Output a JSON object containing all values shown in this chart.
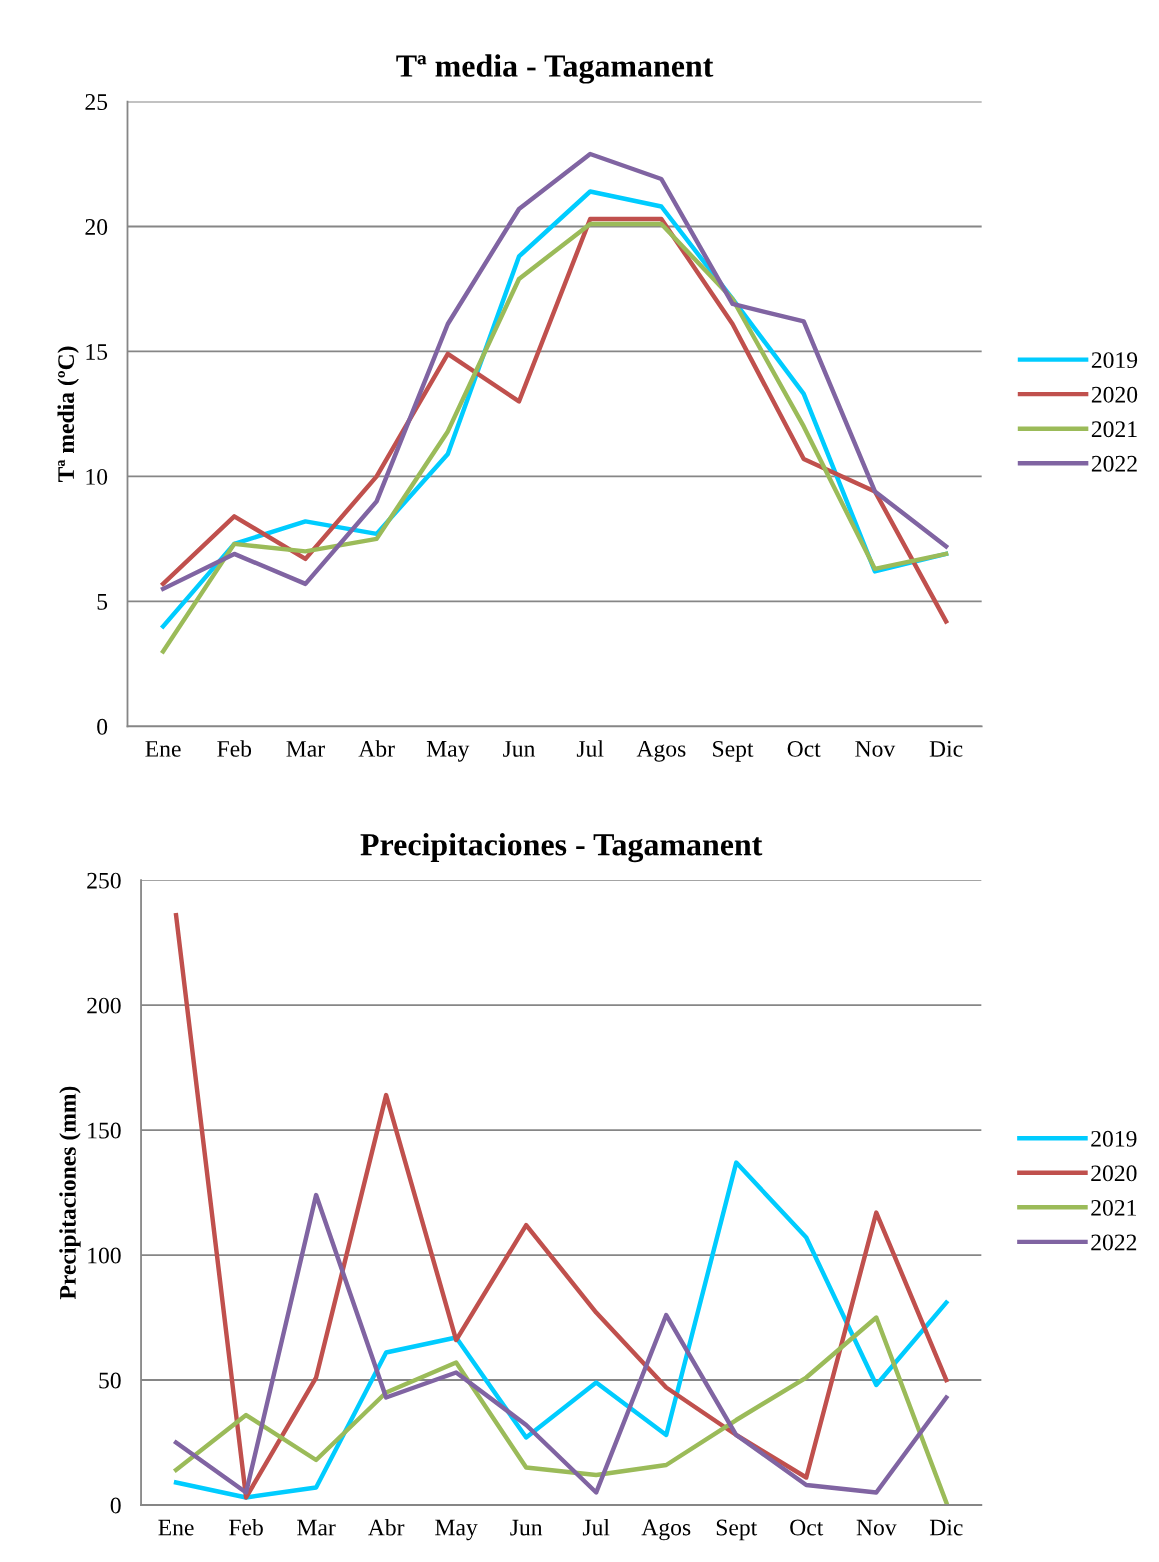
{
  "chart_data": [
    {
      "type": "line",
      "title": "Tª media - Tagamanent",
      "ylabel": "Tª media (ºC)",
      "categories": [
        "Ene",
        "Feb",
        "Mar",
        "Abr",
        "May",
        "Jun",
        "Jul",
        "Agos",
        "Sept",
        "Oct",
        "Nov",
        "Dic"
      ],
      "ylim": [
        0,
        25
      ],
      "yticks": [
        0,
        5,
        10,
        15,
        20,
        25
      ],
      "grid": "y",
      "legend": "right",
      "marker": "none",
      "line_style": "solid",
      "series": [
        {
          "name": "2019",
          "color": "#00ccff",
          "values": [
            4.0,
            7.3,
            8.2,
            7.7,
            10.9,
            18.8,
            21.4,
            20.8,
            17.1,
            13.3,
            6.2,
            6.9
          ]
        },
        {
          "name": "2020",
          "color": "#c0504d",
          "values": [
            5.7,
            8.4,
            6.7,
            10.0,
            14.9,
            13.0,
            20.3,
            20.3,
            16.1,
            10.7,
            9.4,
            4.2
          ]
        },
        {
          "name": "2021",
          "color": "#9bbb59",
          "values": [
            3.0,
            7.3,
            7.0,
            7.5,
            11.8,
            17.9,
            20.1,
            20.1,
            17.1,
            12.0,
            6.3,
            6.9
          ]
        },
        {
          "name": "2022",
          "color": "#8064a2",
          "values": [
            5.5,
            6.9,
            5.7,
            9.0,
            16.1,
            20.7,
            22.9,
            21.9,
            16.9,
            16.2,
            9.4,
            7.2
          ]
        }
      ]
    },
    {
      "type": "line",
      "title": "Precipitaciones - Tagamanent",
      "ylabel": "Precipitaciones (mm)",
      "categories": [
        "Ene",
        "Feb",
        "Mar",
        "Abr",
        "May",
        "Jun",
        "Jul",
        "Agos",
        "Sept",
        "Oct",
        "Nov",
        "Dic"
      ],
      "ylim": [
        0,
        250
      ],
      "yticks": [
        0,
        50,
        100,
        150,
        200,
        250
      ],
      "grid": "y",
      "legend": "right",
      "marker": "none",
      "line_style": "solid",
      "series": [
        {
          "name": "2019",
          "color": "#00ccff",
          "values": [
            9,
            3,
            7,
            61,
            67,
            27,
            49,
            28,
            137,
            107,
            48,
            81
          ]
        },
        {
          "name": "2020",
          "color": "#c0504d",
          "values": [
            236,
            3,
            51,
            164,
            66,
            112,
            77,
            47,
            28,
            11,
            117,
            50
          ]
        },
        {
          "name": "2021",
          "color": "#9bbb59",
          "values": [
            14,
            36,
            18,
            45,
            57,
            15,
            12,
            16,
            34,
            51,
            75,
            1
          ]
        },
        {
          "name": "2022",
          "color": "#8064a2",
          "values": [
            25,
            5,
            124,
            43,
            53,
            32,
            5,
            76,
            28,
            8,
            5,
            43
          ]
        }
      ]
    }
  ]
}
